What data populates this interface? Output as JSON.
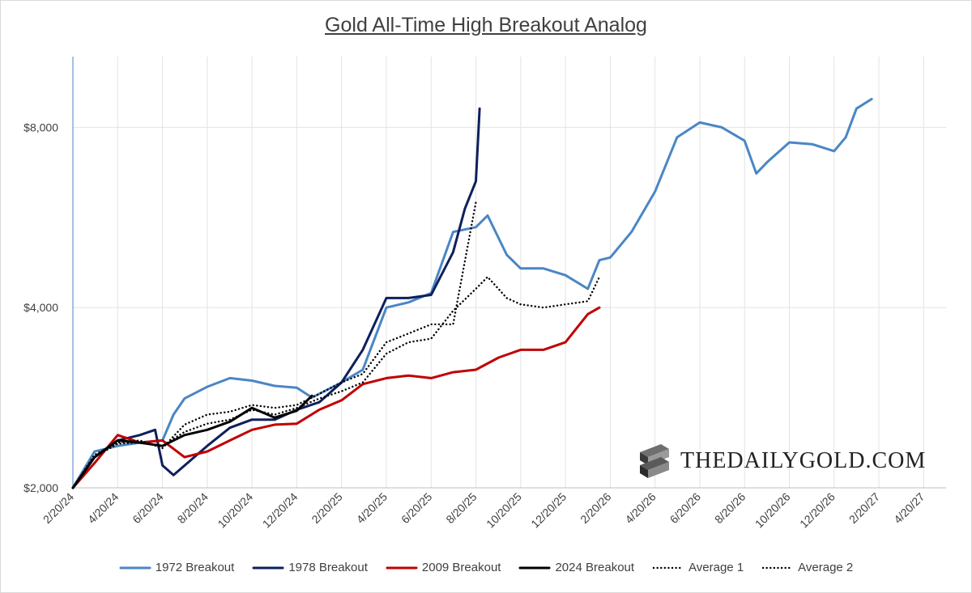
{
  "chart_data": {
    "type": "line",
    "title": "Gold All-Time High Breakout Analog",
    "xlabel": "",
    "ylabel": "",
    "y_scale": "log",
    "ylim": [
      2000,
      10500
    ],
    "y_ticks": [
      "$2,000",
      "$4,000",
      "$8,000"
    ],
    "y_tick_values": [
      2000,
      4000,
      8000
    ],
    "x_ticks": [
      "2/20/24",
      "4/20/24",
      "6/20/24",
      "8/20/24",
      "10/20/24",
      "12/20/24",
      "2/20/25",
      "4/20/25",
      "6/20/25",
      "8/20/25",
      "10/20/25",
      "12/20/25",
      "2/20/26",
      "4/20/26",
      "6/20/26",
      "8/20/26",
      "10/20/26",
      "12/20/26",
      "2/20/27",
      "4/20/27"
    ],
    "grid": true,
    "legend_position": "bottom",
    "series": [
      {
        "name": "1972 Breakout",
        "color": "#4a86c5",
        "style": "solid",
        "x": [
          "2024-02-20",
          "2024-03-20",
          "2024-04-20",
          "2024-05-20",
          "2024-06-20",
          "2024-07-05",
          "2024-07-20",
          "2024-08-20",
          "2024-09-20",
          "2024-10-20",
          "2024-11-20",
          "2024-12-20",
          "2025-01-10",
          "2025-02-20",
          "2025-03-20",
          "2025-04-20",
          "2025-05-20",
          "2025-06-20",
          "2025-07-20",
          "2025-08-20",
          "2025-09-05",
          "2025-10-01",
          "2025-10-20",
          "2025-11-20",
          "2025-12-20",
          "2026-01-20",
          "2026-02-05",
          "2026-02-20",
          "2026-03-20",
          "2026-04-20",
          "2026-05-20",
          "2026-06-20",
          "2026-07-20",
          "2026-08-20",
          "2026-09-05",
          "2026-09-20",
          "2026-10-20",
          "2026-11-20",
          "2026-12-20",
          "2027-01-05",
          "2027-01-20",
          "2027-02-10"
        ],
        "values": [
          2000,
          2300,
          2350,
          2380,
          2400,
          2650,
          2820,
          2950,
          3050,
          3020,
          2960,
          2940,
          2830,
          3000,
          3150,
          4000,
          4080,
          4230,
          5350,
          5450,
          5700,
          4900,
          4650,
          4650,
          4530,
          4300,
          4800,
          4850,
          5350,
          6250,
          7700,
          8150,
          8000,
          7600,
          6700,
          7000,
          7550,
          7500,
          7300,
          7700,
          8600,
          8920
        ]
      },
      {
        "name": "1978 Breakout",
        "color": "#0f1f5c",
        "style": "solid",
        "x": [
          "2024-02-20",
          "2024-03-20",
          "2024-04-20",
          "2024-05-20",
          "2024-06-10",
          "2024-06-20",
          "2024-07-05",
          "2024-08-20",
          "2024-09-20",
          "2024-10-20",
          "2024-11-20",
          "2024-12-20",
          "2025-01-20",
          "2025-02-20",
          "2025-03-20",
          "2025-04-20",
          "2025-05-20",
          "2025-06-20",
          "2025-07-20",
          "2025-08-05",
          "2025-08-20",
          "2025-08-25"
        ],
        "values": [
          2000,
          2250,
          2400,
          2450,
          2500,
          2180,
          2100,
          2350,
          2520,
          2600,
          2600,
          2700,
          2780,
          3000,
          3400,
          4150,
          4150,
          4200,
          4950,
          5850,
          6500,
          8600
        ]
      },
      {
        "name": "2009 Breakout",
        "color": "#c00000",
        "style": "solid",
        "x": [
          "2024-02-20",
          "2024-03-20",
          "2024-04-20",
          "2024-05-20",
          "2024-06-20",
          "2024-07-20",
          "2024-08-20",
          "2024-09-20",
          "2024-10-20",
          "2024-11-20",
          "2024-12-20",
          "2025-01-20",
          "2025-02-20",
          "2025-03-20",
          "2025-04-20",
          "2025-05-20",
          "2025-06-20",
          "2025-07-20",
          "2025-08-20",
          "2025-09-20",
          "2025-10-20",
          "2025-11-20",
          "2025-12-20",
          "2026-01-20",
          "2026-02-05"
        ],
        "values": [
          2000,
          2200,
          2450,
          2380,
          2400,
          2250,
          2300,
          2400,
          2500,
          2550,
          2560,
          2700,
          2800,
          2980,
          3050,
          3080,
          3050,
          3120,
          3150,
          3300,
          3400,
          3400,
          3500,
          3900,
          4000
        ]
      },
      {
        "name": "2024 Breakout",
        "color": "#000000",
        "style": "solid",
        "x": [
          "2024-02-20",
          "2024-03-20",
          "2024-04-20",
          "2024-05-20",
          "2024-06-20",
          "2024-07-20",
          "2024-08-20",
          "2024-09-20",
          "2024-10-20",
          "2024-11-20",
          "2024-12-20",
          "2025-01-10"
        ],
        "values": [
          2000,
          2250,
          2400,
          2380,
          2350,
          2450,
          2500,
          2580,
          2720,
          2620,
          2690,
          2850
        ]
      },
      {
        "name": "Average 1",
        "color": "#000000",
        "style": "dotted",
        "x": [
          "2024-02-20",
          "2024-03-20",
          "2024-04-20",
          "2024-05-20",
          "2024-06-20",
          "2024-07-20",
          "2024-08-20",
          "2024-09-20",
          "2024-10-20",
          "2024-11-20",
          "2024-12-20",
          "2025-01-20",
          "2025-02-20",
          "2025-03-20",
          "2025-04-20",
          "2025-05-20",
          "2025-06-20",
          "2025-07-20",
          "2025-08-20"
        ],
        "values": [
          2000,
          2270,
          2380,
          2400,
          2330,
          2550,
          2650,
          2680,
          2750,
          2720,
          2750,
          2870,
          3000,
          3100,
          3500,
          3620,
          3750,
          3750,
          6000
        ]
      },
      {
        "name": "Average 2",
        "color": "#000000",
        "style": "dotted",
        "x": [
          "2024-02-20",
          "2024-03-20",
          "2024-04-20",
          "2024-05-20",
          "2024-06-20",
          "2024-07-20",
          "2024-08-20",
          "2024-09-20",
          "2024-10-20",
          "2024-11-20",
          "2024-12-20",
          "2025-01-20",
          "2025-02-20",
          "2025-03-20",
          "2025-04-20",
          "2025-05-20",
          "2025-06-20",
          "2025-07-20",
          "2025-08-20",
          "2025-09-05",
          "2025-10-01",
          "2025-10-20",
          "2025-11-20",
          "2025-12-20",
          "2026-01-20",
          "2026-02-05"
        ],
        "values": [
          2000,
          2250,
          2370,
          2380,
          2350,
          2480,
          2560,
          2600,
          2700,
          2650,
          2720,
          2820,
          2900,
          3000,
          3350,
          3500,
          3550,
          3950,
          4300,
          4500,
          4150,
          4050,
          4000,
          4050,
          4100,
          4500
        ]
      }
    ]
  },
  "legend": {
    "items": [
      {
        "label": "1972 Breakout",
        "color": "#4a86c5",
        "dash": ""
      },
      {
        "label": "1978 Breakout",
        "color": "#0f1f5c",
        "dash": ""
      },
      {
        "label": "2009 Breakout",
        "color": "#c00000",
        "dash": ""
      },
      {
        "label": "2024 Breakout",
        "color": "#000000",
        "dash": ""
      },
      {
        "label": "Average 1",
        "color": "#000000",
        "dash": "2,3"
      },
      {
        "label": "Average 2",
        "color": "#000000",
        "dash": "2,3"
      }
    ]
  },
  "brand": {
    "text": "THEDAILYGOLD.COM"
  }
}
